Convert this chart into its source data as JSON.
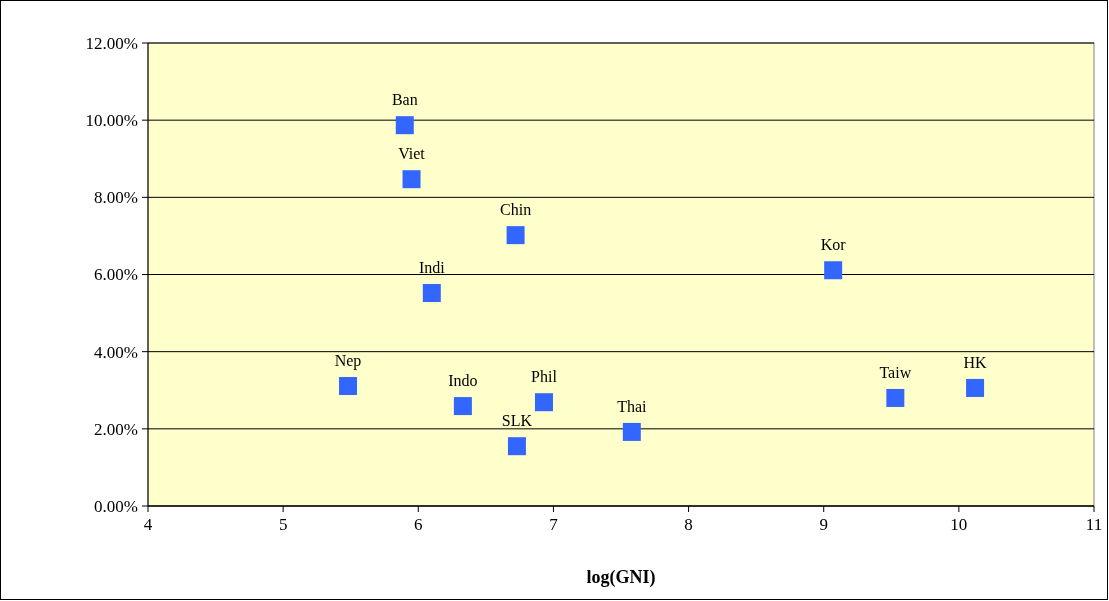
{
  "chart_data": {
    "type": "scatter",
    "xlabel": "log(GNI)",
    "series": [
      {
        "color": "#3366ff",
        "x": [
          5.9,
          5.95,
          6.72,
          6.1,
          9.07,
          5.48,
          6.33,
          6.93,
          6.73,
          7.58,
          9.53,
          10.12
        ],
        "values": [
          9.87,
          8.47,
          7.02,
          5.52,
          6.11,
          3.11,
          2.59,
          2.69,
          1.55,
          1.92,
          2.8,
          3.06
        ]
      }
    ],
    "marker": "square",
    "grid": "y",
    "xlim": [
      4,
      11
    ],
    "xticks": [
      4,
      5,
      6,
      7,
      8,
      9,
      10,
      11
    ],
    "ylim": [
      0,
      12
    ],
    "yticks": [
      {
        "value": 0,
        "label": "0.00%"
      },
      {
        "value": 2,
        "label": "2.00%"
      },
      {
        "value": 4,
        "label": "4.00%"
      },
      {
        "value": 6,
        "label": "6.00%"
      },
      {
        "value": 8,
        "label": "8.00%"
      },
      {
        "value": 10,
        "label": "10.00%"
      },
      {
        "value": 12,
        "label": "12.00%"
      }
    ],
    "annotations": [
      {
        "text": "Ban",
        "x": 5.9,
        "y": 9.87
      },
      {
        "text": "Viet",
        "x": 5.95,
        "y": 8.47
      },
      {
        "text": "Chin",
        "x": 6.72,
        "y": 7.02
      },
      {
        "text": "Indi",
        "x": 6.1,
        "y": 5.52
      },
      {
        "text": "Kor",
        "x": 9.07,
        "y": 6.11
      },
      {
        "text": "Nep",
        "x": 5.48,
        "y": 3.11
      },
      {
        "text": "Indo",
        "x": 6.33,
        "y": 2.59
      },
      {
        "text": "Phil",
        "x": 6.93,
        "y": 2.69
      },
      {
        "text": "SLK",
        "x": 6.73,
        "y": 1.55
      },
      {
        "text": "Thai",
        "x": 7.58,
        "y": 1.92
      },
      {
        "text": "Taiw",
        "x": 9.53,
        "y": 2.8
      },
      {
        "text": "HK",
        "x": 10.12,
        "y": 3.06
      }
    ]
  }
}
